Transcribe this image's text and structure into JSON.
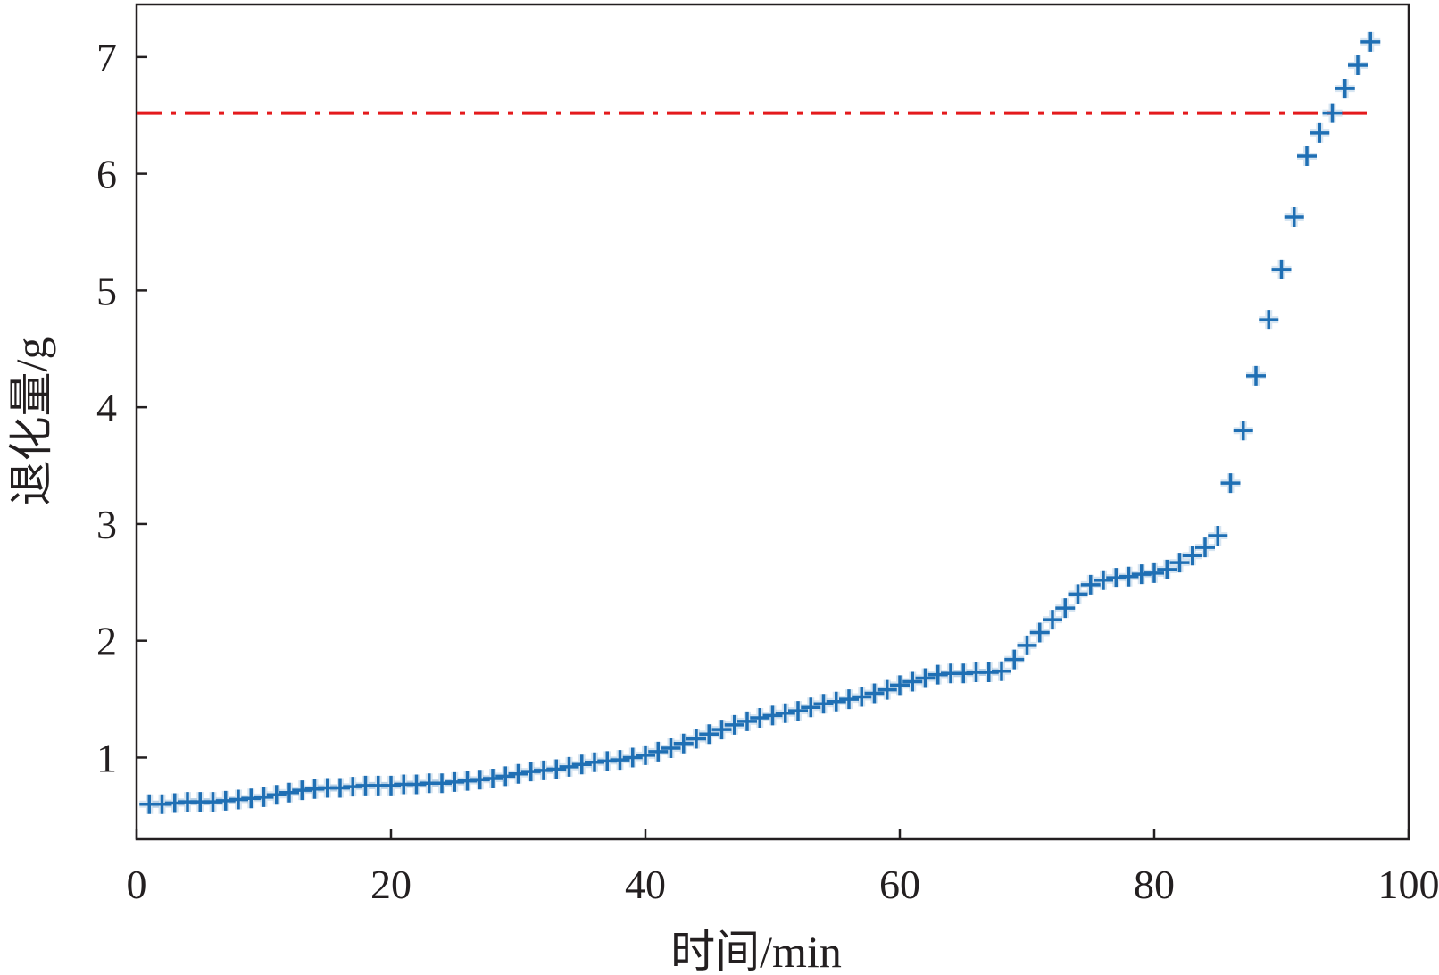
{
  "chart_data": {
    "type": "scatter",
    "title": "",
    "xlabel": "时间/min",
    "ylabel": "退化量/g",
    "xlim": [
      0,
      100
    ],
    "ylim": [
      0.3,
      7.45
    ],
    "xticks": [
      0,
      20,
      40,
      60,
      80,
      100
    ],
    "yticks": [
      1,
      2,
      3,
      4,
      5,
      6,
      7
    ],
    "grid": false,
    "legend": "none",
    "marker_color": "#1f6fb4",
    "threshold_color": "#e41a1c",
    "series": [
      {
        "marker": "plus",
        "x": [
          1,
          2,
          3,
          4,
          5,
          6,
          7,
          8,
          9,
          10,
          11,
          12,
          13,
          14,
          15,
          16,
          17,
          18,
          19,
          20,
          21,
          22,
          23,
          24,
          25,
          26,
          27,
          28,
          29,
          30,
          31,
          32,
          33,
          34,
          35,
          36,
          37,
          38,
          39,
          40,
          41,
          42,
          43,
          44,
          45,
          46,
          47,
          48,
          49,
          50,
          51,
          52,
          53,
          54,
          55,
          56,
          57,
          58,
          59,
          60,
          61,
          62,
          63,
          64,
          65,
          66,
          67,
          68,
          69,
          70,
          71,
          72,
          73,
          74,
          75,
          76,
          77,
          78,
          79,
          80,
          81,
          82,
          83,
          84,
          85,
          86,
          87,
          88,
          89,
          90,
          91,
          92,
          93,
          94,
          95,
          96,
          97
        ],
        "y": [
          0.6,
          0.6,
          0.61,
          0.62,
          0.62,
          0.62,
          0.63,
          0.64,
          0.65,
          0.66,
          0.68,
          0.7,
          0.72,
          0.73,
          0.74,
          0.74,
          0.75,
          0.76,
          0.76,
          0.76,
          0.77,
          0.77,
          0.78,
          0.78,
          0.79,
          0.8,
          0.81,
          0.82,
          0.84,
          0.86,
          0.88,
          0.89,
          0.9,
          0.92,
          0.94,
          0.96,
          0.97,
          0.98,
          1.0,
          1.02,
          1.05,
          1.08,
          1.12,
          1.16,
          1.2,
          1.24,
          1.28,
          1.31,
          1.34,
          1.36,
          1.38,
          1.4,
          1.43,
          1.46,
          1.48,
          1.5,
          1.52,
          1.55,
          1.58,
          1.62,
          1.65,
          1.68,
          1.71,
          1.72,
          1.72,
          1.73,
          1.73,
          1.74,
          1.84,
          1.96,
          2.07,
          2.18,
          2.28,
          2.4,
          2.48,
          2.52,
          2.54,
          2.55,
          2.57,
          2.58,
          2.61,
          2.67,
          2.73,
          2.8,
          2.9,
          3.35,
          3.8,
          4.27,
          4.75,
          5.18,
          5.63,
          6.15,
          6.35,
          6.52,
          6.73,
          6.93,
          7.13
        ]
      }
    ],
    "threshold": {
      "y": 6.52,
      "x_start": 0,
      "x_end": 97,
      "style": "dash-dot"
    }
  }
}
